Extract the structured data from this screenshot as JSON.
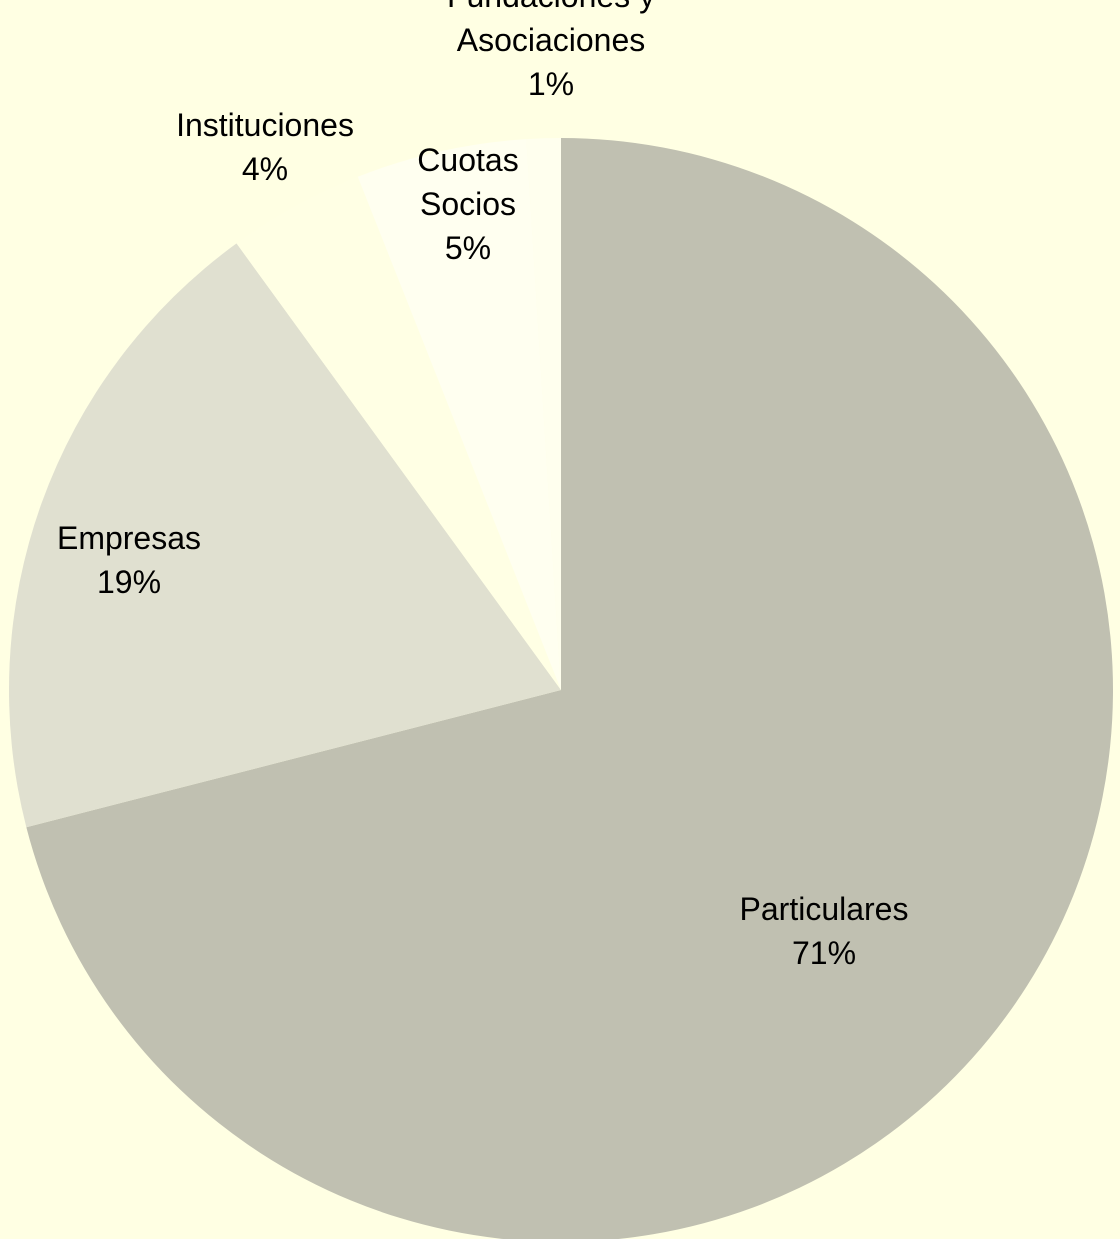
{
  "chart_data": {
    "type": "pie",
    "start_angle_deg": 0,
    "direction": "clockwise",
    "slices": [
      {
        "label_lines": [
          "Particulares"
        ],
        "value": 71,
        "value_label": "71%",
        "color": "#c0c0b1"
      },
      {
        "label_lines": [
          "Empresas"
        ],
        "value": 19,
        "value_label": "19%",
        "color": "#e0e0d0"
      },
      {
        "label_lines": [
          "Instituciones"
        ],
        "value": 4,
        "value_label": "4%",
        "color": "#ffffe4"
      },
      {
        "label_lines": [
          "Cuotas",
          "Socios"
        ],
        "value": 5,
        "value_label": "5%",
        "color": "#fffff0"
      },
      {
        "label_lines": [
          "Fundaciones y",
          "Asociaciones"
        ],
        "value": 1,
        "value_label": "1%",
        "color": "#ffffee"
      }
    ]
  },
  "colors": {
    "background": "#ffffe3",
    "text": "#000000"
  }
}
